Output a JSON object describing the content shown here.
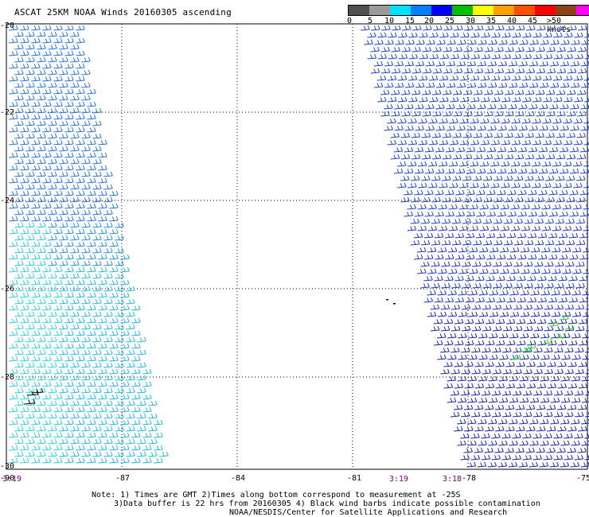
{
  "title": "ASCAT 25KM NOAA Winds 20160305 ascending",
  "legend": {
    "labels": [
      "0",
      "5",
      "10",
      "15",
      "20",
      "25",
      "30",
      "35",
      "40",
      "45",
      ">50 knots"
    ],
    "colors": [
      "#505050",
      "#9a9a9a",
      "#00e0ff",
      "#0080ff",
      "#0000ff",
      "#00c000",
      "#ffff00",
      "#ffa000",
      "#ff5000",
      "#ff0000",
      "#8b4513",
      "#ff00ff",
      "#800080"
    ]
  },
  "axes": {
    "lon_ticks": [
      "-90",
      "-87",
      "-84",
      "-81",
      "-78",
      "-75"
    ],
    "lat_ticks": [
      "-20",
      "-22",
      "-24",
      "-26",
      "-28",
      "-30"
    ]
  },
  "pass_times": {
    "left": "3:19",
    "mid_1": "3:19",
    "mid_2": "3:18"
  },
  "notes": {
    "line1": "Note: 1) Times are GMT 2)Times along bottom correspond to measurement at -25S",
    "line2": "3)Data buffer is 22 hrs from 20160305 4) Black wind barbs indicate possible contamination",
    "line3": "NOAA/NESDIS/Center for Satellite Applications and Research"
  }
}
